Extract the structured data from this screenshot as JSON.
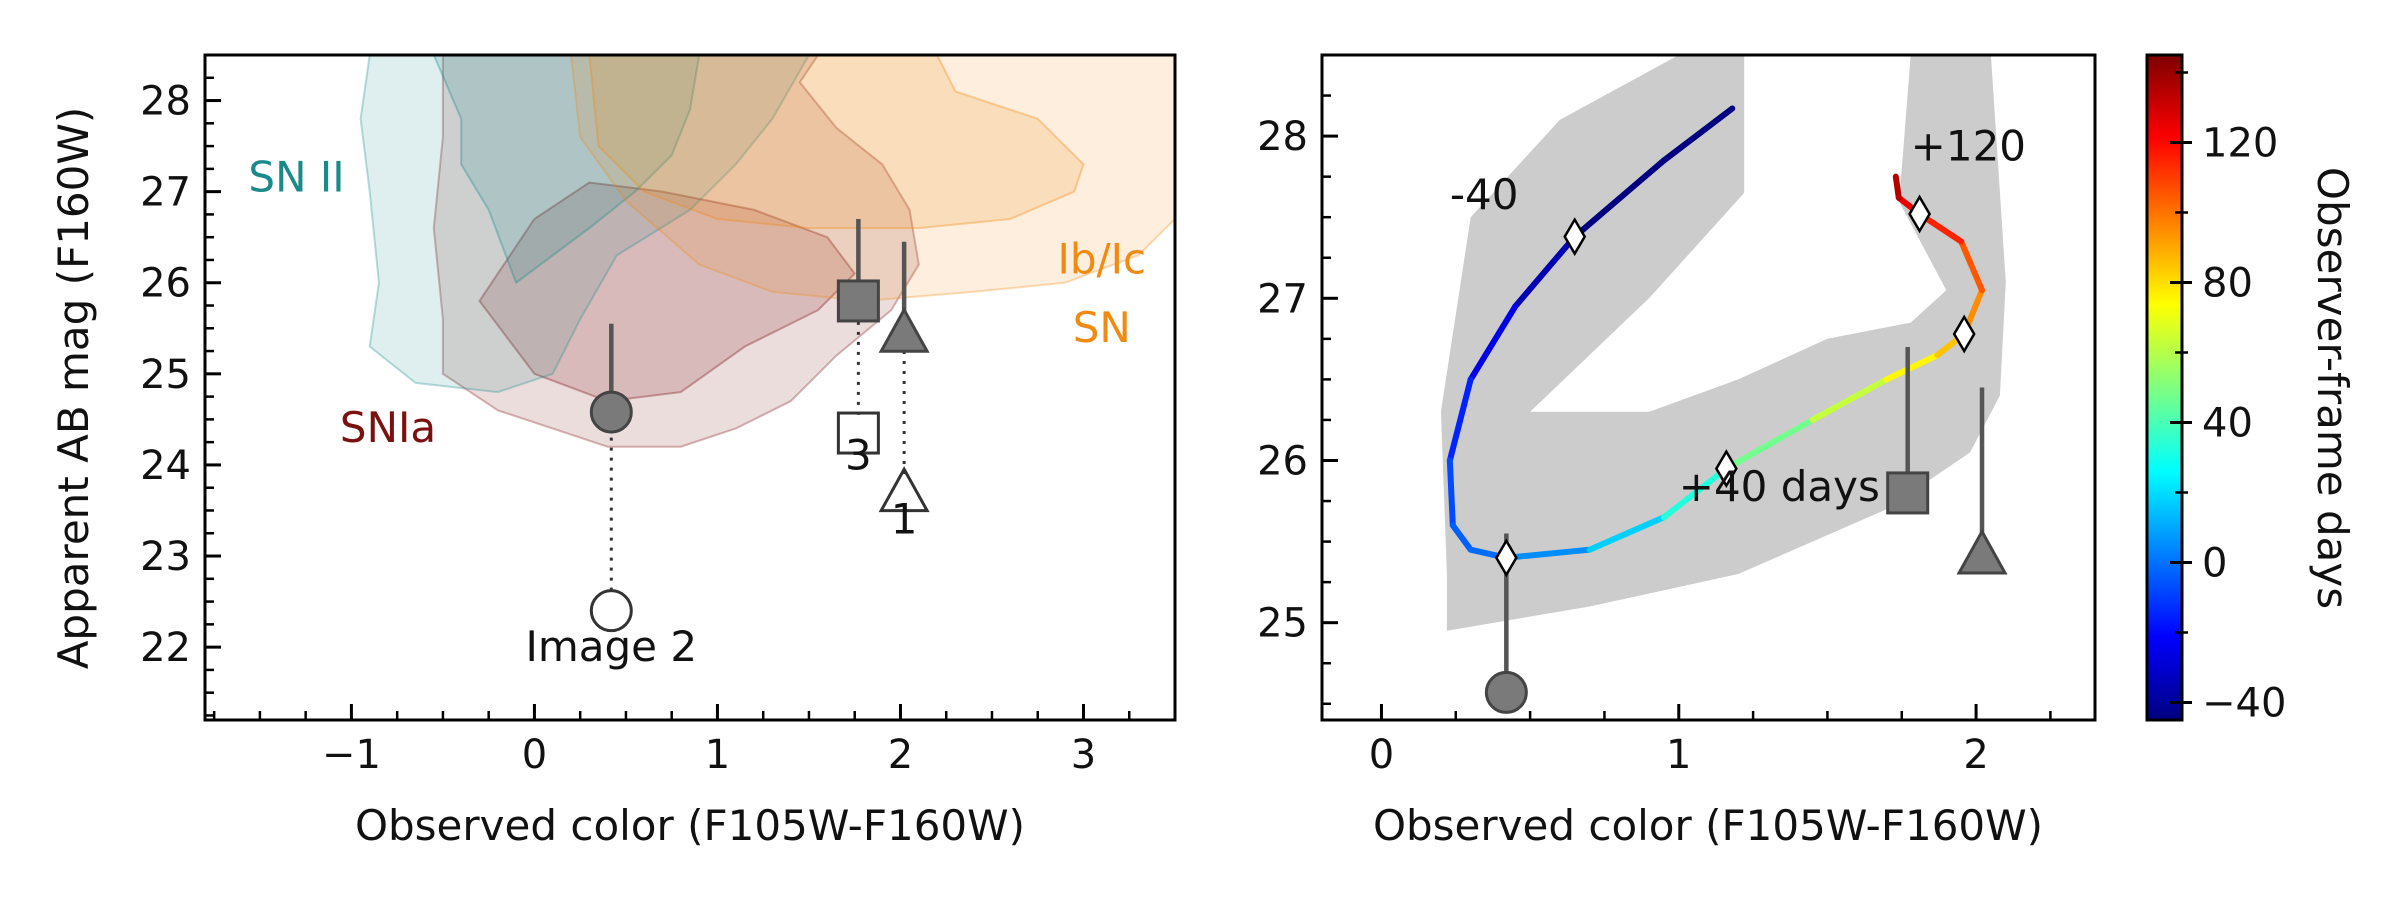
{
  "colors": {
    "snia": "#7a1010",
    "sn2": "#1a8a8a",
    "snibc": "#f08a10",
    "marker_filled": "#7a7a7a",
    "marker_edge": "#444444",
    "band": "#cccccc"
  },
  "chart_data": [
    {
      "type": "scatter",
      "xlabel": "Observed color (F105W-F160W)",
      "ylabel": "Apparent AB mag (F160W)",
      "xlim": [
        -1.8,
        3.5
      ],
      "ylim": [
        28.5,
        21.2
      ],
      "y_inverted": true,
      "xticks": [
        -1,
        0,
        1,
        2,
        3
      ],
      "yticks": [
        22,
        23,
        24,
        25,
        26,
        27,
        28
      ],
      "xtick_labels": [
        "−1",
        "0",
        "1",
        "2",
        "3"
      ],
      "ytick_labels": [
        "22",
        "23",
        "24",
        "25",
        "26",
        "27",
        "28"
      ],
      "regions": [
        {
          "name": "SNIa",
          "label": "SNIa",
          "color": "#7a1010",
          "outer": [
            [
              -0.5,
              28.5
            ],
            [
              -0.5,
              27.6
            ],
            [
              -0.55,
              26.6
            ],
            [
              -0.5,
              25.6
            ],
            [
              -0.5,
              25.0
            ],
            [
              -0.2,
              24.6
            ],
            [
              0.4,
              24.2
            ],
            [
              0.8,
              24.2
            ],
            [
              1.1,
              24.4
            ],
            [
              1.4,
              24.7
            ],
            [
              1.65,
              25.2
            ],
            [
              1.95,
              25.7
            ],
            [
              2.1,
              26.2
            ],
            [
              2.05,
              26.8
            ],
            [
              1.9,
              27.3
            ],
            [
              1.65,
              27.7
            ],
            [
              1.45,
              28.2
            ],
            [
              1.55,
              28.5
            ]
          ],
          "inner": [
            [
              -0.3,
              25.8
            ],
            [
              0.0,
              25.0
            ],
            [
              0.4,
              24.7
            ],
            [
              0.8,
              24.8
            ],
            [
              1.15,
              25.3
            ],
            [
              1.55,
              25.7
            ],
            [
              1.75,
              26.1
            ],
            [
              1.6,
              26.5
            ],
            [
              1.2,
              26.8
            ],
            [
              0.7,
              27.0
            ],
            [
              0.3,
              27.1
            ],
            [
              0.0,
              26.7
            ],
            [
              -0.2,
              26.1
            ]
          ]
        },
        {
          "name": "SN II",
          "label": "SN II",
          "color": "#1a8a8a",
          "outer": [
            [
              -0.9,
              28.5
            ],
            [
              -0.95,
              27.8
            ],
            [
              -0.9,
              27.0
            ],
            [
              -0.85,
              26.0
            ],
            [
              -0.9,
              25.3
            ],
            [
              -0.65,
              24.9
            ],
            [
              -0.2,
              24.8
            ],
            [
              0.1,
              25.0
            ],
            [
              0.25,
              25.6
            ],
            [
              0.45,
              26.3
            ],
            [
              0.85,
              26.8
            ],
            [
              1.1,
              27.3
            ],
            [
              1.3,
              27.8
            ],
            [
              1.5,
              28.5
            ]
          ],
          "inner": [
            [
              -0.55,
              28.5
            ],
            [
              -0.4,
              27.8
            ],
            [
              -0.4,
              27.3
            ],
            [
              -0.25,
              26.8
            ],
            [
              -0.1,
              26.0
            ],
            [
              0.3,
              26.6
            ],
            [
              0.55,
              27.0
            ],
            [
              0.75,
              27.4
            ],
            [
              0.85,
              27.9
            ],
            [
              0.9,
              28.5
            ]
          ]
        },
        {
          "name": "SN Ib/Ic",
          "label_line1": "SN",
          "label_line2": "Ib/Ic",
          "color": "#f08a10",
          "outer": [
            [
              0.2,
              28.5
            ],
            [
              0.25,
              27.6
            ],
            [
              0.5,
              26.9
            ],
            [
              0.9,
              26.2
            ],
            [
              1.3,
              25.9
            ],
            [
              1.8,
              25.8
            ],
            [
              2.4,
              25.9
            ],
            [
              2.9,
              26.0
            ],
            [
              3.3,
              26.3
            ],
            [
              3.5,
              26.7
            ],
            [
              3.5,
              28.5
            ]
          ],
          "inner": [
            [
              0.3,
              28.5
            ],
            [
              0.35,
              27.5
            ],
            [
              0.6,
              27.0
            ],
            [
              1.0,
              26.7
            ],
            [
              1.5,
              26.6
            ],
            [
              2.1,
              26.6
            ],
            [
              2.6,
              26.7
            ],
            [
              2.95,
              27.0
            ],
            [
              3.0,
              27.3
            ],
            [
              2.75,
              27.8
            ],
            [
              2.3,
              28.1
            ],
            [
              2.2,
              28.5
            ]
          ]
        }
      ],
      "points": [
        {
          "id": "image-2-open",
          "x": 0.42,
          "y": 22.4,
          "marker": "circle",
          "filled": false
        },
        {
          "id": "image-2-filled",
          "x": 0.42,
          "y": 24.58,
          "marker": "circle",
          "filled": true,
          "err_to": 25.55
        },
        {
          "id": "image-3-open",
          "x": 1.77,
          "y": 24.35,
          "marker": "square",
          "filled": false
        },
        {
          "id": "image-3-filled",
          "x": 1.77,
          "y": 25.8,
          "marker": "square",
          "filled": true,
          "err_to": 26.7
        },
        {
          "id": "image-1-open",
          "x": 2.02,
          "y": 23.7,
          "marker": "triangle",
          "filled": false
        },
        {
          "id": "image-1-filled",
          "x": 2.02,
          "y": 25.45,
          "marker": "triangle",
          "filled": true,
          "err_to": 26.45
        }
      ],
      "connectors": [
        {
          "x": 0.42,
          "y1": 22.62,
          "y2": 24.4
        },
        {
          "x": 1.77,
          "y1": 24.55,
          "y2": 25.6
        },
        {
          "x": 2.02,
          "y1": 23.9,
          "y2": 25.25
        }
      ],
      "annotations": [
        {
          "text": "Image 2",
          "x": 0.42,
          "y": 21.85
        },
        {
          "text": "3",
          "x": 1.77,
          "y": 23.95
        },
        {
          "text": "1",
          "x": 2.02,
          "y": 23.25
        }
      ],
      "region_labels": [
        {
          "text": "SNIa",
          "x": -0.8,
          "y": 24.25,
          "color": "#7a1010"
        },
        {
          "text": "SN II",
          "x": -1.3,
          "y": 27.0,
          "color": "#1a8a8a"
        },
        {
          "text": "SN",
          "x": 3.1,
          "y": 25.35,
          "color": "#f08a10"
        },
        {
          "text": "Ib/Ic",
          "x": 3.1,
          "y": 26.1,
          "color": "#f08a10"
        }
      ]
    },
    {
      "type": "line",
      "xlabel": "Observed color (F105W-F160W)",
      "xlim": [
        -0.2,
        2.4
      ],
      "ylim": [
        28.5,
        24.4
      ],
      "y_inverted": true,
      "xticks": [
        0,
        1,
        2
      ],
      "yticks": [
        25,
        26,
        27,
        28
      ],
      "xtick_labels": [
        "0",
        "1",
        "2"
      ],
      "ytick_labels": [
        "25",
        "26",
        "27",
        "28"
      ],
      "track": {
        "color_by": "days",
        "points": [
          [
            1.18,
            28.17,
            -60
          ],
          [
            0.95,
            27.85,
            -52
          ],
          [
            0.65,
            27.38,
            -40
          ],
          [
            0.45,
            26.95,
            -30
          ],
          [
            0.3,
            26.5,
            -20
          ],
          [
            0.23,
            26.0,
            -10
          ],
          [
            0.24,
            25.6,
            -5
          ],
          [
            0.3,
            25.45,
            -2
          ],
          [
            0.42,
            25.4,
            0
          ],
          [
            0.7,
            25.45,
            10
          ],
          [
            0.95,
            25.65,
            25
          ],
          [
            1.16,
            25.95,
            40
          ],
          [
            1.45,
            26.25,
            55
          ],
          [
            1.7,
            26.5,
            70
          ],
          [
            1.87,
            26.65,
            80
          ],
          [
            1.96,
            26.78,
            90
          ],
          [
            2.02,
            27.05,
            100
          ],
          [
            1.95,
            27.35,
            110
          ],
          [
            1.81,
            27.52,
            120
          ],
          [
            1.74,
            27.62,
            130
          ],
          [
            1.73,
            27.75,
            140
          ]
        ]
      },
      "band": [
        [
          0.22,
          24.95
        ],
        [
          0.7,
          25.1
        ],
        [
          1.2,
          25.3
        ],
        [
          1.7,
          25.7
        ],
        [
          1.98,
          26.05
        ],
        [
          2.08,
          26.4
        ],
        [
          2.1,
          27.1
        ],
        [
          2.05,
          28.5
        ],
        [
          1.78,
          28.5
        ],
        [
          1.75,
          27.8
        ],
        [
          1.74,
          27.6
        ],
        [
          1.9,
          27.05
        ],
        [
          1.78,
          26.85
        ],
        [
          1.5,
          26.75
        ],
        [
          1.2,
          26.5
        ],
        [
          0.9,
          26.3
        ],
        [
          0.5,
          26.3
        ],
        [
          0.9,
          27.0
        ],
        [
          1.22,
          27.65
        ],
        [
          1.22,
          28.5
        ],
        [
          1.0,
          28.5
        ],
        [
          0.6,
          28.1
        ],
        [
          0.3,
          27.5
        ],
        [
          0.2,
          26.3
        ],
        [
          0.22,
          25.3
        ]
      ],
      "day_markers": [
        {
          "x": 0.42,
          "y": 25.4,
          "days": 0
        },
        {
          "x": 0.65,
          "y": 27.38,
          "days": -40
        },
        {
          "x": 1.16,
          "y": 25.95,
          "days": 40
        },
        {
          "x": 1.96,
          "y": 26.78,
          "days": 80
        },
        {
          "x": 1.81,
          "y": 27.52,
          "days": 120
        }
      ],
      "points": [
        {
          "id": "image-2",
          "x": 0.42,
          "y": 24.57,
          "marker": "circle",
          "filled": true,
          "err_to": 25.55
        },
        {
          "id": "image-3",
          "x": 1.77,
          "y": 25.8,
          "marker": "square",
          "filled": true,
          "err_to": 26.7
        },
        {
          "id": "image-1",
          "x": 2.02,
          "y": 25.42,
          "marker": "triangle",
          "filled": true,
          "err_to": 26.45
        }
      ],
      "annotations": [
        {
          "text": "+40 days",
          "x": 1.0,
          "y": 25.75
        },
        {
          "text": "-40",
          "x": 0.23,
          "y": 27.55
        },
        {
          "text": "+120",
          "x": 1.78,
          "y": 27.85
        }
      ]
    }
  ],
  "colorbar": {
    "label": "Observer-frame days",
    "min": -45,
    "max": 145,
    "ticks": [
      -40,
      0,
      40,
      80,
      120
    ],
    "tick_labels": [
      "−40",
      "0",
      "40",
      "80",
      "120"
    ]
  }
}
